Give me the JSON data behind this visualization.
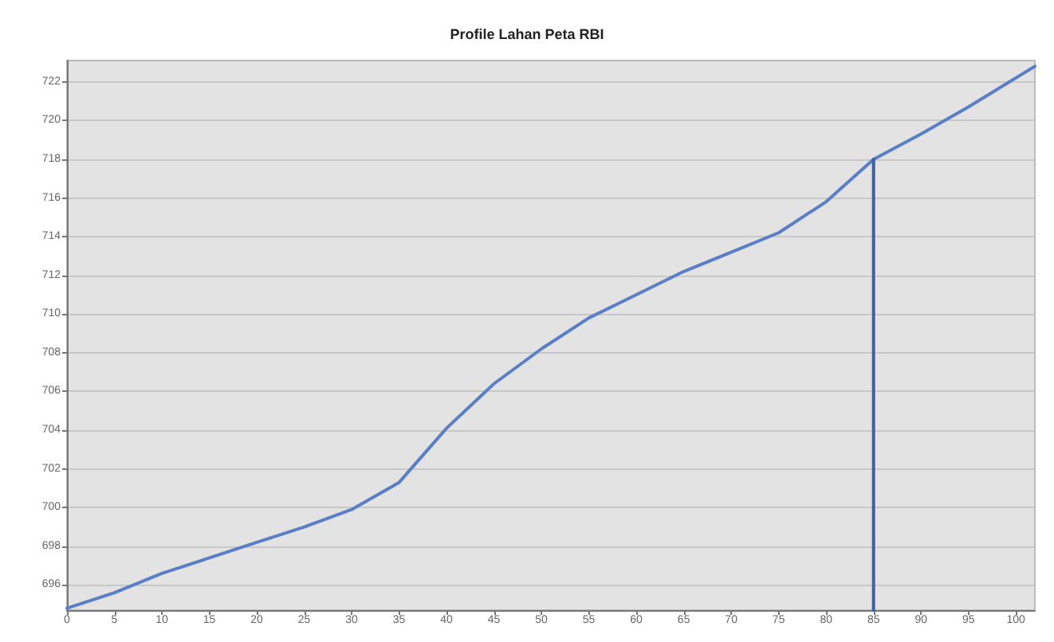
{
  "chart_data": {
    "type": "line",
    "title": "Profile Lahan Peta RBI",
    "series": [
      {
        "color": "#5b7fc6",
        "x": [
          0,
          5,
          10,
          15,
          20,
          25,
          30,
          35,
          40,
          45,
          50,
          55,
          60,
          65,
          70,
          75,
          80,
          85,
          90,
          95,
          100,
          102
        ],
        "values": [
          694.8,
          695.6,
          696.6,
          697.4,
          698.2,
          699,
          699.9,
          701.3,
          704.1,
          706.4,
          708.2,
          709.8,
          711,
          712.2,
          713.2,
          714.2,
          715.8,
          718,
          719.3,
          720.7,
          722.2,
          722.8
        ]
      },
      {
        "color": "#3f5f9e",
        "x": [
          85,
          85
        ],
        "values": [
          694.7,
          718
        ]
      }
    ],
    "xlim": [
      0,
      102
    ],
    "xticks": [
      0,
      5,
      10,
      15,
      20,
      25,
      30,
      35,
      40,
      45,
      50,
      55,
      60,
      65,
      70,
      75,
      80,
      85,
      90,
      95,
      100
    ],
    "ylim": [
      694.7,
      723.1
    ],
    "yticks": [
      696,
      698,
      700,
      702,
      704,
      706,
      708,
      710,
      712,
      714,
      716,
      718,
      720,
      722
    ],
    "grid": "y",
    "marker": "none",
    "line_style": "solid"
  }
}
